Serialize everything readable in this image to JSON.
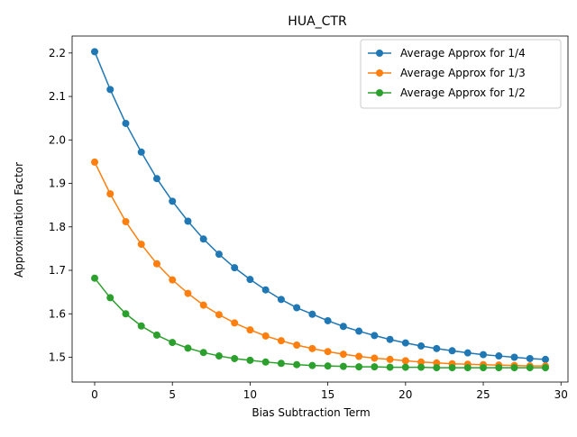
{
  "chart_data": {
    "type": "line",
    "title": "HUA_CTR",
    "xlabel": "Bias Subtraction Term",
    "ylabel": "Approximation Factor",
    "xlim": [
      -1.45,
      30.45
    ],
    "ylim": [
      1.443,
      2.239
    ],
    "xticks": [
      0,
      5,
      10,
      15,
      20,
      25,
      30
    ],
    "yticks": [
      1.5,
      1.6,
      1.7,
      1.8,
      1.9,
      2.0,
      2.1,
      2.2
    ],
    "ytick_labels": [
      "1.5",
      "1.6",
      "1.7",
      "1.8",
      "1.9",
      "2.0",
      "2.1",
      "2.2"
    ],
    "grid": false,
    "legend_position": "upper right",
    "x": [
      0,
      1,
      2,
      3,
      4,
      5,
      6,
      7,
      8,
      9,
      10,
      11,
      12,
      13,
      14,
      15,
      16,
      17,
      18,
      19,
      20,
      21,
      22,
      23,
      24,
      25,
      26,
      27,
      28,
      29
    ],
    "series": [
      {
        "name": "Average Approx for 1/4",
        "color": "#1f77b4",
        "values": [
          2.203,
          2.116,
          2.038,
          1.972,
          1.911,
          1.859,
          1.813,
          1.772,
          1.737,
          1.706,
          1.679,
          1.655,
          1.633,
          1.614,
          1.599,
          1.584,
          1.571,
          1.56,
          1.55,
          1.541,
          1.533,
          1.526,
          1.52,
          1.515,
          1.51,
          1.506,
          1.503,
          1.5,
          1.497,
          1.495
        ]
      },
      {
        "name": "Average Approx for 1/3",
        "color": "#ff7f0e",
        "values": [
          1.949,
          1.876,
          1.812,
          1.76,
          1.715,
          1.678,
          1.647,
          1.62,
          1.598,
          1.579,
          1.563,
          1.549,
          1.538,
          1.528,
          1.52,
          1.513,
          1.507,
          1.502,
          1.498,
          1.495,
          1.492,
          1.489,
          1.487,
          1.485,
          1.484,
          1.483,
          1.482,
          1.481,
          1.48,
          1.48
        ]
      },
      {
        "name": "Average Approx for 1/2",
        "color": "#2ca02c",
        "values": [
          1.682,
          1.637,
          1.6,
          1.572,
          1.551,
          1.534,
          1.521,
          1.511,
          1.503,
          1.497,
          1.493,
          1.489,
          1.486,
          1.483,
          1.481,
          1.48,
          1.479,
          1.478,
          1.478,
          1.477,
          1.477,
          1.477,
          1.476,
          1.476,
          1.476,
          1.476,
          1.476,
          1.476,
          1.476,
          1.476
        ]
      }
    ]
  }
}
